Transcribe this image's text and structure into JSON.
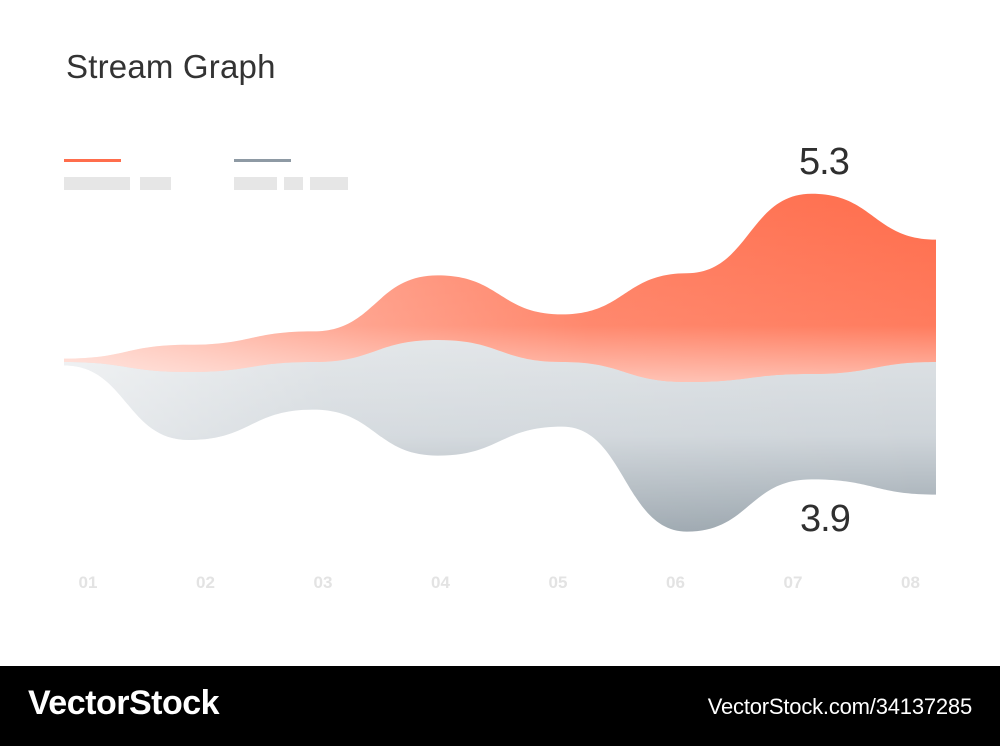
{
  "chart_data": {
    "type": "area",
    "title": "Stream Graph",
    "categories": [
      "01",
      "02",
      "03",
      "04",
      "05",
      "06",
      "07",
      "08"
    ],
    "series": [
      {
        "color": "#ff6d4c",
        "values": [
          0.1,
          0.8,
          0.9,
          1.9,
          1.4,
          3.2,
          5.3,
          3.6
        ]
      },
      {
        "color": "#8e9aa4",
        "values": [
          0.1,
          2.0,
          1.4,
          3.4,
          1.9,
          4.4,
          3.1,
          3.9
        ]
      }
    ],
    "annotations": [
      {
        "text": "5.3",
        "category": "07",
        "value": 5.3,
        "series": 0
      },
      {
        "text": "3.9",
        "category": "08",
        "value": 3.9,
        "series": 1
      }
    ],
    "grid": false,
    "legend_position": "top-left"
  },
  "colors": {
    "accent": "#ff6d4c",
    "secondary": "#8e9aa4",
    "placeholder": "#e6e6e6",
    "tick": "#e3e3e3"
  },
  "footer": {
    "logo": "VectorStock",
    "url": "VectorStock.com/34137285"
  }
}
